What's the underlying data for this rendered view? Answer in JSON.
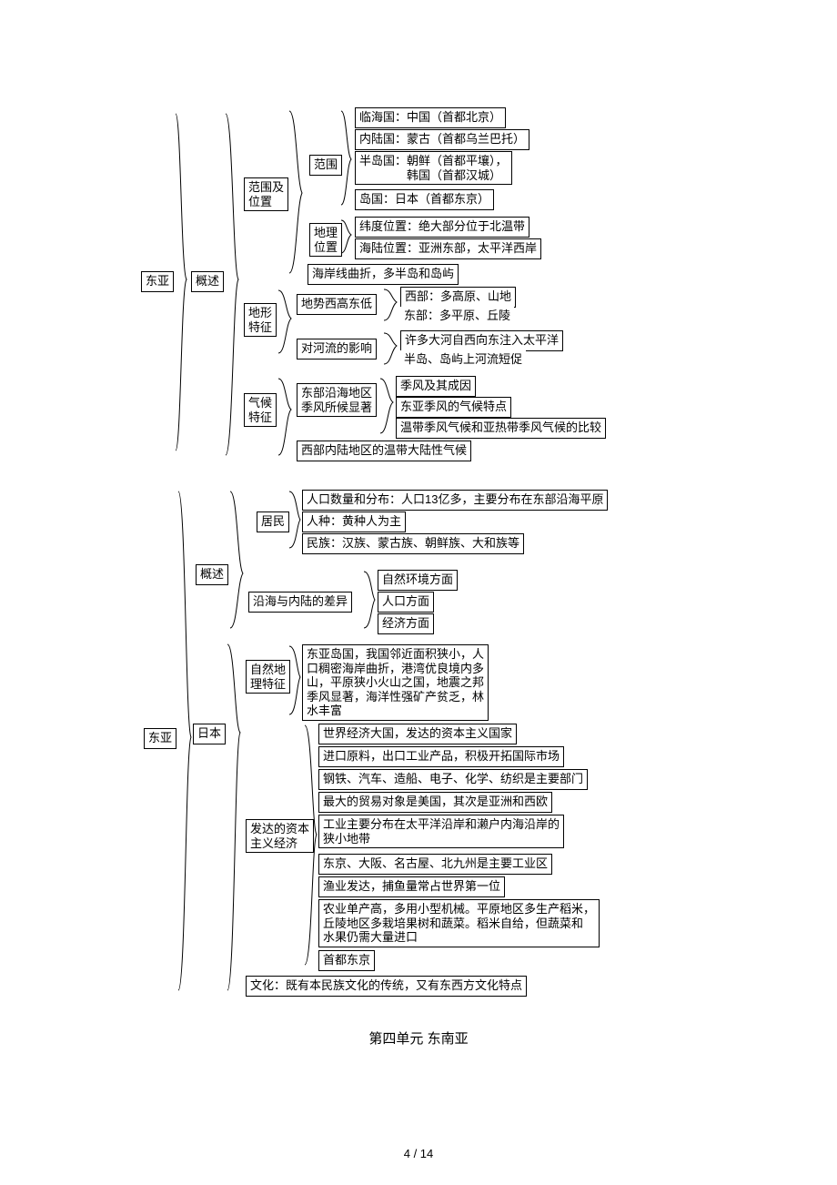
{
  "colors": {
    "border": "#000000",
    "bg": "#ffffff",
    "text": "#000000",
    "brace": "#000000"
  },
  "font": {
    "family": "SimSun",
    "size": 13,
    "titleSize": 15
  },
  "nodes": {
    "r1": "东亚",
    "r2": "东亚",
    "gaishu1": "概述",
    "gaishu2": "概述",
    "fanwei_weizhi": "范围及\n位置",
    "fanwei": "范围",
    "dili_weizhi": "地理\n位置",
    "n_linhai": "临海国：中国（首都北京）",
    "n_neilu": "内陆国：蒙古（首都乌兰巴托）",
    "n_bandao": "半岛国：朝鲜（首都平壤），\n　　　　韩国（首都汉城）",
    "n_daoguo": "岛国：日本（首都东京）",
    "n_weidu": "纬度位置：绝大部分位于北温带",
    "n_hailu": "海陆位置：亚洲东部，太平洋西岸",
    "n_haixian": "海岸线曲折，多半岛和岛屿",
    "dixing_tezheng": "地形\n特征",
    "dishi": "地势西高东低",
    "duihe": "对河流的影响",
    "xi_gao": "西部：多高原、山地",
    "dong_ping": "东部：多平原、丘陵",
    "dahe": "许多大河自西向东注入太平洋",
    "duancu": "半岛、岛屿上河流短促",
    "qihou_tezheng": "气候\n特征",
    "dongbu_yanhai": "东部沿海地区\n季风所候显著",
    "jifeng_chengyin": "季风及其成因",
    "dongya_jifeng": "东亚季风的气候特点",
    "wendai_bijiao": "温带季风气候和亚热带季风气候的比较",
    "xibu_neilu": "西部内陆地区的温带大陆性气候",
    "jumin": "居民",
    "renkou": "人口数量和分布：人口13亿多，主要分布在东部沿海平原",
    "renzhong": "人种：黄种人为主",
    "minzu": "民族：汉族、蒙古族、朝鲜族、大和族等",
    "yanhai_chayi": "沿海与内陆的差异",
    "ziran_fang": "自然环境方面",
    "renkou_fang": "人口方面",
    "jingji_fang": "经济方面",
    "riben": "日本",
    "ziran_dili": "自然地\n理特征",
    "riben_dili": "东亚岛国，我国邻近面积狭小，人\n口稠密海岸曲折，港湾优良境内多\n山，平原狭小火山之国，地震之邦\n季风显著，海洋性强矿产贫乏，林\n水丰富",
    "fada_ziben": "发达的资本\n主义经济",
    "shijie_jingji": "世界经济大国，发达的资本主义国家",
    "jinkou": "进口原料，出口工业产品，积极开拓国际市场",
    "gangjie": "钢铁、汽车、造船、电子、化学、纺织是主要部门",
    "maoyi": "最大的贸易对象是美国，其次是亚洲和西欧",
    "gongye": "工业主要分布在太平洋沿岸和濑户内海沿岸的\n狭小地带",
    "gongye_qu": "东京、大阪、名古屋、北九州是主要工业区",
    "yuye": "渔业发达，捕鱼量常占世界第一位",
    "nongye": "农业单产高，多用小型机械。平原地区多生产稻米，\n丘陵地区多栽培果树和蔬菜。稻米自给，但蔬菜和\n水果仍需大量进口",
    "shoudu": "首都东京",
    "wenhua": "文化：既有本民族文化的传统，又有东西方文化特点"
  },
  "sectionTitle": "第四单元  东南亚",
  "footer": "4 / 14"
}
